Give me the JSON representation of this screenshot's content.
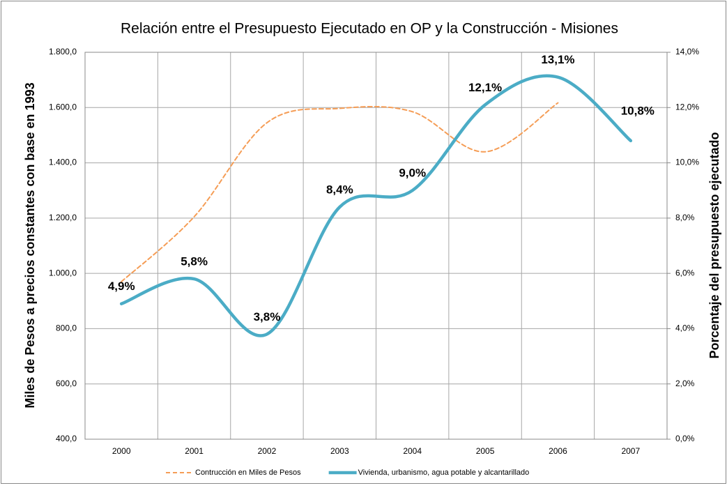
{
  "chart_data": {
    "type": "line",
    "title": "Relación entre el Presupuesto Ejecutado en OP y la Construcción - Misiones",
    "ylabel": "Miles de Pesos a precios constantes con base en 1993",
    "y2label": "Porcentaje del presupuesto ejecutado",
    "categories": [
      "2000",
      "2001",
      "2002",
      "2003",
      "2004",
      "2005",
      "2006",
      "2007"
    ],
    "series": [
      {
        "name": "Contrucción en Miles de Pesos",
        "color": "#f59d56",
        "dashed": true,
        "axis": "y",
        "values": [
          970,
          1205,
          1545,
          1597,
          1585,
          1440,
          1617,
          null
        ]
      },
      {
        "name": "Vivienda, urbanismo, agua potable y alcantarillado",
        "color": "#4bacc6",
        "dashed": false,
        "axis": "y2",
        "values": [
          4.9,
          5.8,
          3.8,
          8.4,
          9.0,
          12.1,
          13.1,
          10.8
        ],
        "value_labels": [
          "4,9%",
          "5,8%",
          "3,8%",
          "8,4%",
          "9,0%",
          "12,1%",
          "13,1%",
          "10,8%"
        ]
      }
    ],
    "ylim": [
      400,
      1800
    ],
    "yticks": [
      {
        "value": 400,
        "label": "400,0"
      },
      {
        "value": 600,
        "label": "600,0"
      },
      {
        "value": 800,
        "label": "800,0"
      },
      {
        "value": 1000,
        "label": "1.000,0"
      },
      {
        "value": 1200,
        "label": "1.200,0"
      },
      {
        "value": 1400,
        "label": "1.400,0"
      },
      {
        "value": 1600,
        "label": "1.600,0"
      },
      {
        "value": 1800,
        "label": "1.800,0"
      }
    ],
    "y2lim": [
      0,
      14
    ],
    "y2ticks": [
      {
        "value": 0,
        "label": "0,0%"
      },
      {
        "value": 2,
        "label": "2,0%"
      },
      {
        "value": 4,
        "label": "4,0%"
      },
      {
        "value": 6,
        "label": "6,0%"
      },
      {
        "value": 8,
        "label": "8,0%"
      },
      {
        "value": 10,
        "label": "10,0%"
      },
      {
        "value": 12,
        "label": "12,0%"
      },
      {
        "value": 14,
        "label": "14,0%"
      }
    ],
    "grid": true,
    "legend": "bottom"
  }
}
